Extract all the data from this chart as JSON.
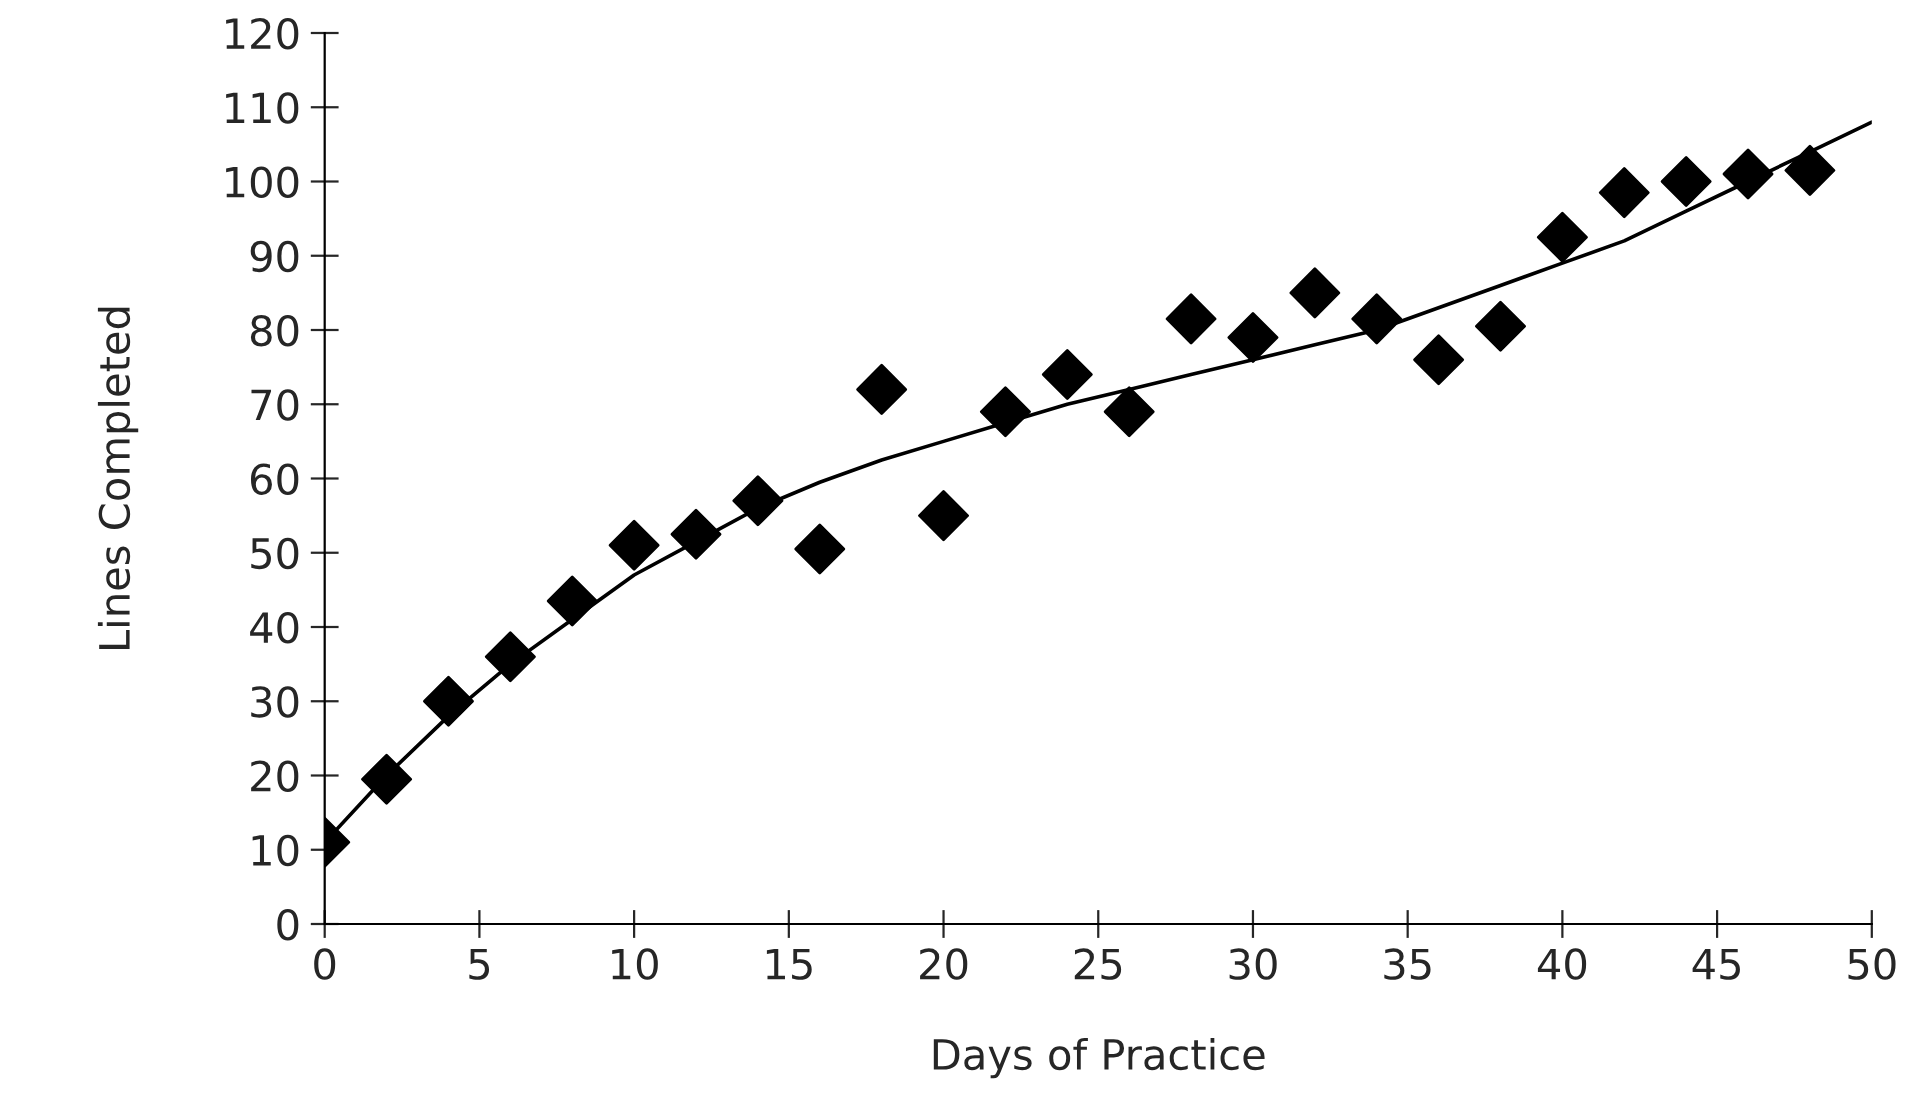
{
  "chart_data": {
    "type": "scatter",
    "xlabel": "Days of Practice",
    "ylabel": "Lines Completed",
    "xlim": [
      0,
      50
    ],
    "ylim": [
      0,
      120
    ],
    "xticks": [
      0,
      5,
      10,
      15,
      20,
      25,
      30,
      35,
      40,
      45,
      50
    ],
    "yticks": [
      0,
      10,
      20,
      30,
      40,
      50,
      60,
      70,
      80,
      90,
      100,
      110,
      120
    ],
    "grid": false,
    "series": [
      {
        "marker": "diamond",
        "color": "#000000",
        "x": [
          0,
          2,
          4,
          6,
          8,
          10,
          12,
          14,
          16,
          18,
          20,
          22,
          24,
          26,
          28,
          30,
          32,
          34,
          36,
          38,
          40,
          42,
          44,
          46,
          48
        ],
        "values": [
          11,
          19.5,
          30,
          36,
          43.5,
          51,
          52.5,
          57,
          50.5,
          72,
          55,
          69,
          74,
          69,
          81.5,
          79,
          85,
          81.5,
          76,
          80.5,
          92.5,
          98.5,
          100,
          101,
          101.5
        ]
      },
      {
        "type": "line",
        "marker": "none",
        "line_style": "solid",
        "color": "#000000",
        "x": [
          0,
          2,
          4,
          6,
          8,
          10,
          12,
          14,
          16,
          18,
          20,
          22,
          24,
          26,
          28,
          30,
          32,
          34,
          36,
          38,
          40,
          42,
          44,
          46,
          48,
          50
        ],
        "values": [
          11,
          20,
          28,
          35,
          41,
          47,
          51.5,
          56,
          59.5,
          62.5,
          65,
          67.5,
          70,
          72,
          74,
          76,
          78,
          80,
          83,
          86,
          89,
          92,
          96,
          100,
          104,
          108
        ]
      }
    ]
  }
}
